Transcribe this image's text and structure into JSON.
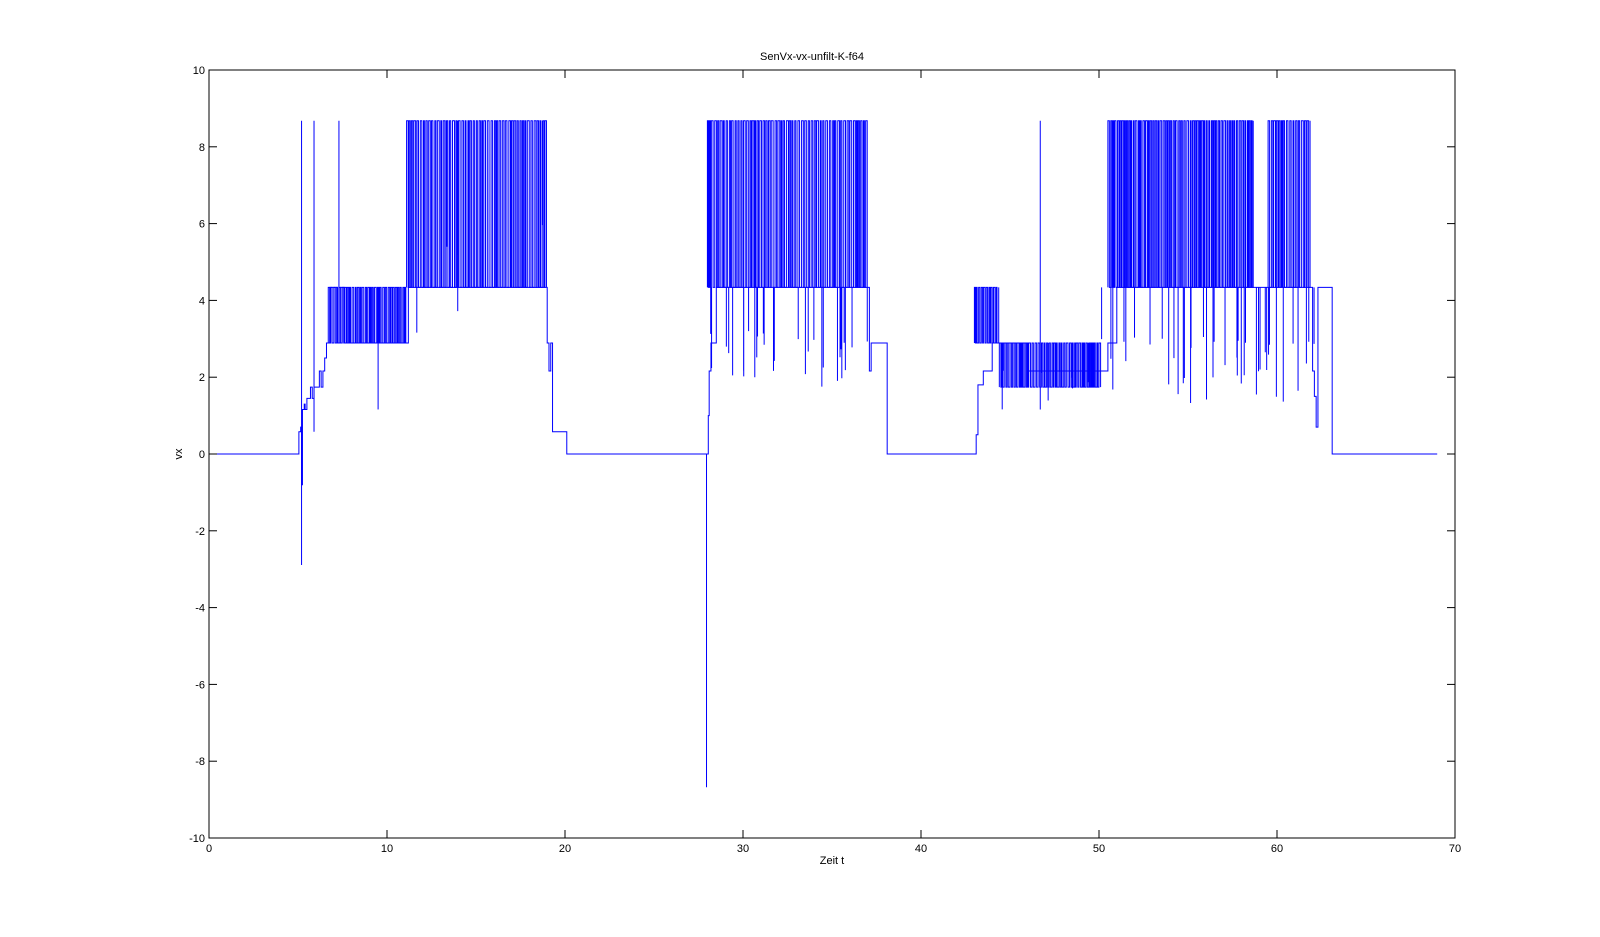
{
  "chart_data": {
    "type": "line",
    "title": "SenVx-vx-unfilt-K-f64",
    "xlabel": "Zeit t",
    "ylabel": "vx",
    "xlim": [
      0,
      70
    ],
    "ylim": [
      -10,
      10
    ],
    "xticks": [
      0,
      10,
      20,
      30,
      40,
      50,
      60,
      70
    ],
    "yticks": [
      -10,
      -8,
      -6,
      -4,
      -2,
      0,
      2,
      4,
      6,
      8,
      10
    ],
    "grid": false,
    "line_color": "#0000ff",
    "levels": [
      0,
      0.58,
      1.16,
      1.74,
      2.16,
      2.89,
      4.34,
      8.68
    ],
    "series": [
      {
        "x": [
          0,
          5.0,
          5.05,
          5.1,
          5.15,
          5.2,
          5.25,
          5.3,
          5.35,
          5.4,
          5.5,
          5.6,
          5.7,
          5.8,
          5.9,
          6.0,
          6.1,
          6.2,
          6.3,
          6.4,
          6.5,
          6.6,
          6.7,
          6.8,
          7.0,
          7.2,
          7.4,
          7.6,
          8.0,
          9.0,
          10.0,
          11.0,
          11.2,
          12.0,
          13.0,
          14.0,
          15.0,
          16.0,
          17.0,
          18.0,
          18.9,
          19.0,
          19.1,
          19.2,
          19.3,
          20.0,
          20.1,
          27.9,
          28.0,
          28.05,
          28.1,
          28.2,
          28.5,
          29.0,
          30.0,
          31.0,
          32.0,
          33.0,
          34.0,
          35.0,
          36.0,
          36.9,
          37.0,
          37.1,
          37.2,
          38.0,
          38.1,
          42.9,
          43.0,
          43.1,
          43.2,
          43.5,
          44.0,
          44.4,
          44.6,
          45.0,
          46.0,
          47.0,
          48.0,
          49.0,
          50.0,
          50.5,
          51.0,
          52.0,
          53.0,
          54.0,
          55.0,
          56.0,
          57.0,
          58.0,
          59.0,
          60.0,
          61.0,
          61.9,
          62.0,
          62.1,
          62.2,
          62.3,
          63.0,
          63.1,
          69.0
        ],
        "y": [
          0,
          0,
          0.58,
          0.58,
          0.7,
          -0.8,
          1.16,
          1.16,
          1.3,
          1.16,
          1.45,
          1.45,
          1.74,
          1.45,
          1.74,
          1.74,
          1.74,
          2.16,
          1.74,
          2.16,
          2.5,
          2.89,
          2.89,
          4.34,
          4.34,
          2.89,
          4.34,
          2.89,
          2.89,
          2.89,
          2.89,
          2.89,
          4.34,
          4.34,
          4.34,
          4.34,
          4.34,
          4.34,
          4.34,
          4.34,
          4.34,
          2.89,
          2.16,
          2.89,
          0.58,
          0.58,
          0,
          0,
          0,
          1.0,
          2.16,
          2.89,
          4.34,
          4.34,
          4.34,
          4.34,
          4.34,
          4.34,
          4.34,
          4.34,
          4.34,
          4.34,
          4.34,
          2.16,
          2.89,
          2.89,
          0,
          0,
          0,
          0.5,
          1.8,
          2.16,
          2.89,
          2.89,
          2.89,
          2.89,
          2.16,
          2.16,
          2.16,
          2.16,
          2.16,
          2.89,
          4.34,
          4.34,
          4.34,
          4.34,
          4.34,
          4.34,
          4.34,
          4.34,
          4.34,
          4.34,
          4.34,
          4.34,
          2.16,
          1.5,
          0.7,
          4.34,
          4.34,
          0,
          0
        ]
      }
    ],
    "bursts": [
      {
        "x0": 6.7,
        "x1": 11.1,
        "lo": 2.89,
        "hi": 4.34,
        "step": 0.07
      },
      {
        "x0": 11.1,
        "x1": 19.0,
        "lo": 4.34,
        "hi": 8.68,
        "step": 0.08
      },
      {
        "x0": 28.0,
        "x1": 37.0,
        "lo": 4.34,
        "hi": 8.68,
        "step": 0.08
      },
      {
        "x0": 43.0,
        "x1": 44.4,
        "lo": 2.89,
        "hi": 4.34,
        "step": 0.07
      },
      {
        "x0": 44.4,
        "x1": 50.1,
        "lo": 1.74,
        "hi": 2.89,
        "step": 0.07
      },
      {
        "x0": 50.5,
        "x1": 58.7,
        "lo": 4.34,
        "hi": 8.68,
        "step": 0.07
      },
      {
        "x0": 59.5,
        "x1": 61.9,
        "lo": 4.34,
        "hi": 8.68,
        "step": 0.08
      }
    ],
    "spikes": [
      {
        "x": 5.2,
        "lo": -2.89,
        "hi": 8.68
      },
      {
        "x": 5.9,
        "lo": 0.58,
        "hi": 8.68
      },
      {
        "x": 7.3,
        "lo": 2.89,
        "hi": 8.68
      },
      {
        "x": 9.5,
        "lo": 1.16,
        "hi": 4.34
      },
      {
        "x": 27.95,
        "lo": -8.68,
        "hi": 0
      },
      {
        "x": 46.7,
        "lo": 1.16,
        "hi": 8.68
      }
    ],
    "dips": [
      {
        "x0": 28.0,
        "x1": 37.0,
        "lo": 1.74,
        "count": 30
      },
      {
        "x0": 50.0,
        "x1": 62.2,
        "lo": 1.16,
        "count": 40
      },
      {
        "x0": 11.0,
        "x1": 19.0,
        "lo": 2.89,
        "count": 6
      },
      {
        "x0": 44.5,
        "x1": 50.0,
        "lo": 1.16,
        "count": 12
      }
    ]
  }
}
